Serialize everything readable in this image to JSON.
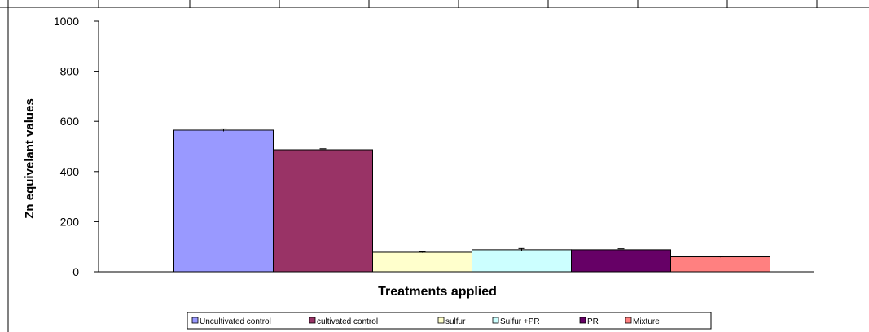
{
  "chart_data": {
    "type": "bar",
    "title": "",
    "xlabel": "Treatments applied",
    "ylabel": "Zn equivelant values",
    "ylim": [
      0,
      1000
    ],
    "yticks": [
      0,
      200,
      400,
      600,
      800,
      1000
    ],
    "grid": false,
    "legend_position": "bottom",
    "series": [
      {
        "name": "Uncultivated control",
        "value": 565,
        "error": 5,
        "color": "#9999ff"
      },
      {
        "name": "cultivated control",
        "value": 487,
        "error": 4,
        "color": "#993366"
      },
      {
        "name": "sulfur",
        "value": 78,
        "error": 2,
        "color": "#ffffcc"
      },
      {
        "name": "Sulfur +PR",
        "value": 88,
        "error": 5,
        "color": "#ccffff"
      },
      {
        "name": "PR",
        "value": 88,
        "error": 4,
        "color": "#660066"
      },
      {
        "name": "Mixture",
        "value": 60,
        "error": 2,
        "color": "#ff8080"
      }
    ]
  }
}
